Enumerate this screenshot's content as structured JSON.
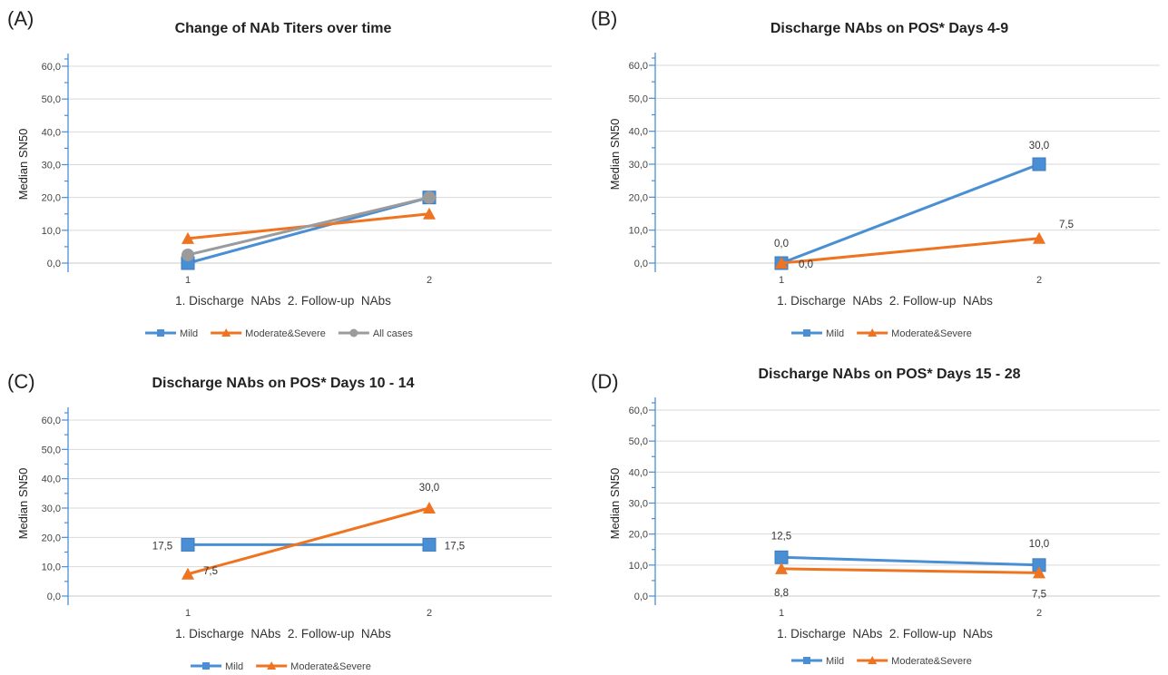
{
  "chart_data": [
    {
      "panel": "(A)",
      "type": "line",
      "title": "Change of NAb Titers over time",
      "xlabel": "1. Discharge  NAbs  2. Follow-up  NAbs",
      "ylabel": "Median SN50",
      "categories": [
        "1",
        "2"
      ],
      "ylim": [
        0,
        60
      ],
      "yticks": [
        "0,0",
        "10,0",
        "20,0",
        "30,0",
        "40,0",
        "50,0",
        "60,0"
      ],
      "grid": true,
      "legend_position": "bottom",
      "series": [
        {
          "name": "Mild",
          "values": [
            0.0,
            20.0
          ],
          "marker": "square",
          "color": "#4a8fd4"
        },
        {
          "name": "Moderate&Severe",
          "values": [
            7.5,
            15.0
          ],
          "marker": "triangle",
          "color": "#ee7421"
        },
        {
          "name": "All cases",
          "values": [
            2.5,
            20.0
          ],
          "marker": "circle",
          "color": "#9b9b9b"
        }
      ]
    },
    {
      "panel": "(B)",
      "type": "line",
      "title": "Discharge NAbs on POS* Days 4-9",
      "xlabel": "1. Discharge  NAbs  2. Follow-up  NAbs",
      "ylabel": "Median SN50",
      "categories": [
        "1",
        "2"
      ],
      "ylim": [
        0,
        60
      ],
      "yticks": [
        "0,0",
        "10,0",
        "20,0",
        "30,0",
        "40,0",
        "50,0",
        "60,0"
      ],
      "grid": true,
      "legend_position": "bottom",
      "series": [
        {
          "name": "Mild",
          "values": [
            0.0,
            30.0
          ],
          "labels": [
            "0,0",
            "30,0"
          ],
          "marker": "square",
          "color": "#4a8fd4"
        },
        {
          "name": "Moderate&Severe",
          "values": [
            0.0,
            7.5
          ],
          "labels": [
            "0,0",
            "7,5"
          ],
          "marker": "triangle",
          "color": "#ee7421"
        }
      ]
    },
    {
      "panel": "(C)",
      "type": "line",
      "title": "Discharge NAbs on POS* Days 10 - 14",
      "xlabel": "1. Discharge  NAbs  2. Follow-up  NAbs",
      "ylabel": "Median SN50",
      "categories": [
        "1",
        "2"
      ],
      "ylim": [
        0,
        60
      ],
      "yticks": [
        "0,0",
        "10,0",
        "20,0",
        "30,0",
        "40,0",
        "50,0",
        "60,0"
      ],
      "grid": true,
      "legend_position": "bottom",
      "series": [
        {
          "name": "Mild",
          "values": [
            17.5,
            17.5
          ],
          "labels": [
            "17,5",
            "17,5"
          ],
          "marker": "square",
          "color": "#4a8fd4"
        },
        {
          "name": "Moderate&Severe",
          "values": [
            7.5,
            30.0
          ],
          "labels": [
            "7,5",
            "30,0"
          ],
          "marker": "triangle",
          "color": "#ee7421"
        }
      ]
    },
    {
      "panel": "(D)",
      "type": "line",
      "title": "Discharge NAbs on POS* Days 15 - 28",
      "xlabel": "1. Discharge  NAbs  2. Follow-up  NAbs",
      "ylabel": "Median SN50",
      "categories": [
        "1",
        "2"
      ],
      "ylim": [
        0,
        60
      ],
      "yticks": [
        "0,0",
        "10,0",
        "20,0",
        "30,0",
        "40,0",
        "50,0",
        "60,0"
      ],
      "grid": true,
      "legend_position": "bottom",
      "series": [
        {
          "name": "Mild",
          "values": [
            12.5,
            10.0
          ],
          "labels": [
            "12,5",
            "10,0"
          ],
          "marker": "square",
          "color": "#4a8fd4"
        },
        {
          "name": "Moderate&Severe",
          "values": [
            8.8,
            7.5
          ],
          "labels": [
            "8,8",
            "7,5"
          ],
          "marker": "triangle",
          "color": "#ee7421"
        }
      ]
    }
  ]
}
